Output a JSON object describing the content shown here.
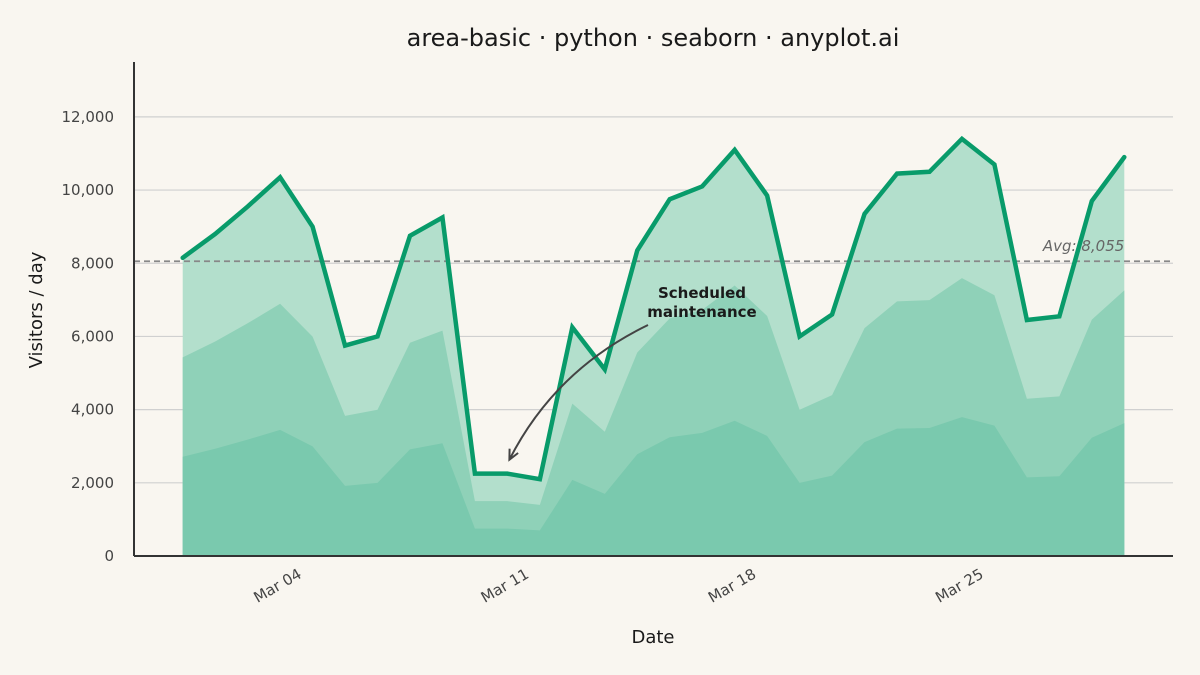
{
  "chart_data": {
    "type": "area",
    "title": "area-basic · python · seaborn · anyplot.ai",
    "xlabel": "Date",
    "ylabel": "Visitors / day",
    "x": [
      "2024-03-01",
      "2024-03-02",
      "2024-03-03",
      "2024-03-04",
      "2024-03-05",
      "2024-03-06",
      "2024-03-07",
      "2024-03-08",
      "2024-03-09",
      "2024-03-10",
      "2024-03-11",
      "2024-03-12",
      "2024-03-13",
      "2024-03-14",
      "2024-03-15",
      "2024-03-16",
      "2024-03-17",
      "2024-03-18",
      "2024-03-19",
      "2024-03-20",
      "2024-03-21",
      "2024-03-22",
      "2024-03-23",
      "2024-03-24",
      "2024-03-25",
      "2024-03-26",
      "2024-03-27",
      "2024-03-28",
      "2024-03-29",
      "2024-03-30"
    ],
    "xtick_labels": [
      {
        "date": "2024-03-04",
        "label": "Mar 04"
      },
      {
        "date": "2024-03-11",
        "label": "Mar 11"
      },
      {
        "date": "2024-03-18",
        "label": "Mar 18"
      },
      {
        "date": "2024-03-25",
        "label": "Mar 25"
      }
    ],
    "series": [
      {
        "values": [
          8150,
          8800,
          9550,
          10350,
          9000,
          5750,
          6000,
          8750,
          9250,
          2250,
          2250,
          2100,
          6250,
          5100,
          8350,
          9750,
          10100,
          11100,
          9850,
          6000,
          6600,
          9350,
          10450,
          10500,
          11400,
          10700,
          6450,
          6550,
          9700,
          10900
        ]
      }
    ],
    "bands": [
      {
        "fraction": 0.666,
        "color": "#8fd1b8"
      },
      {
        "fraction": 0.333,
        "color": "#7ac9ae"
      }
    ],
    "colors": {
      "line": "#089b6a",
      "fill_top": "#b3dfcc",
      "avg_line": "#888888",
      "axis": "#333333",
      "grid": "#d0d0d0",
      "background": "#f9f6f0",
      "annotation": "#444444"
    },
    "ylim": [
      0,
      13500
    ],
    "yticks": [
      {
        "value": 0,
        "label": "0"
      },
      {
        "value": 2000,
        "label": "2,000"
      },
      {
        "value": 4000,
        "label": "4,000"
      },
      {
        "value": 6000,
        "label": "6,000"
      },
      {
        "value": 8000,
        "label": "8,000"
      },
      {
        "value": 10000,
        "label": "10,000"
      },
      {
        "value": 12000,
        "label": "12,000"
      }
    ],
    "grid": true,
    "average": {
      "value": 8055,
      "label": "Avg: 8,055"
    },
    "annotation": {
      "lines": [
        "Scheduled",
        "maintenance"
      ],
      "target_date": "2024-03-11",
      "target_value": 2250
    }
  }
}
